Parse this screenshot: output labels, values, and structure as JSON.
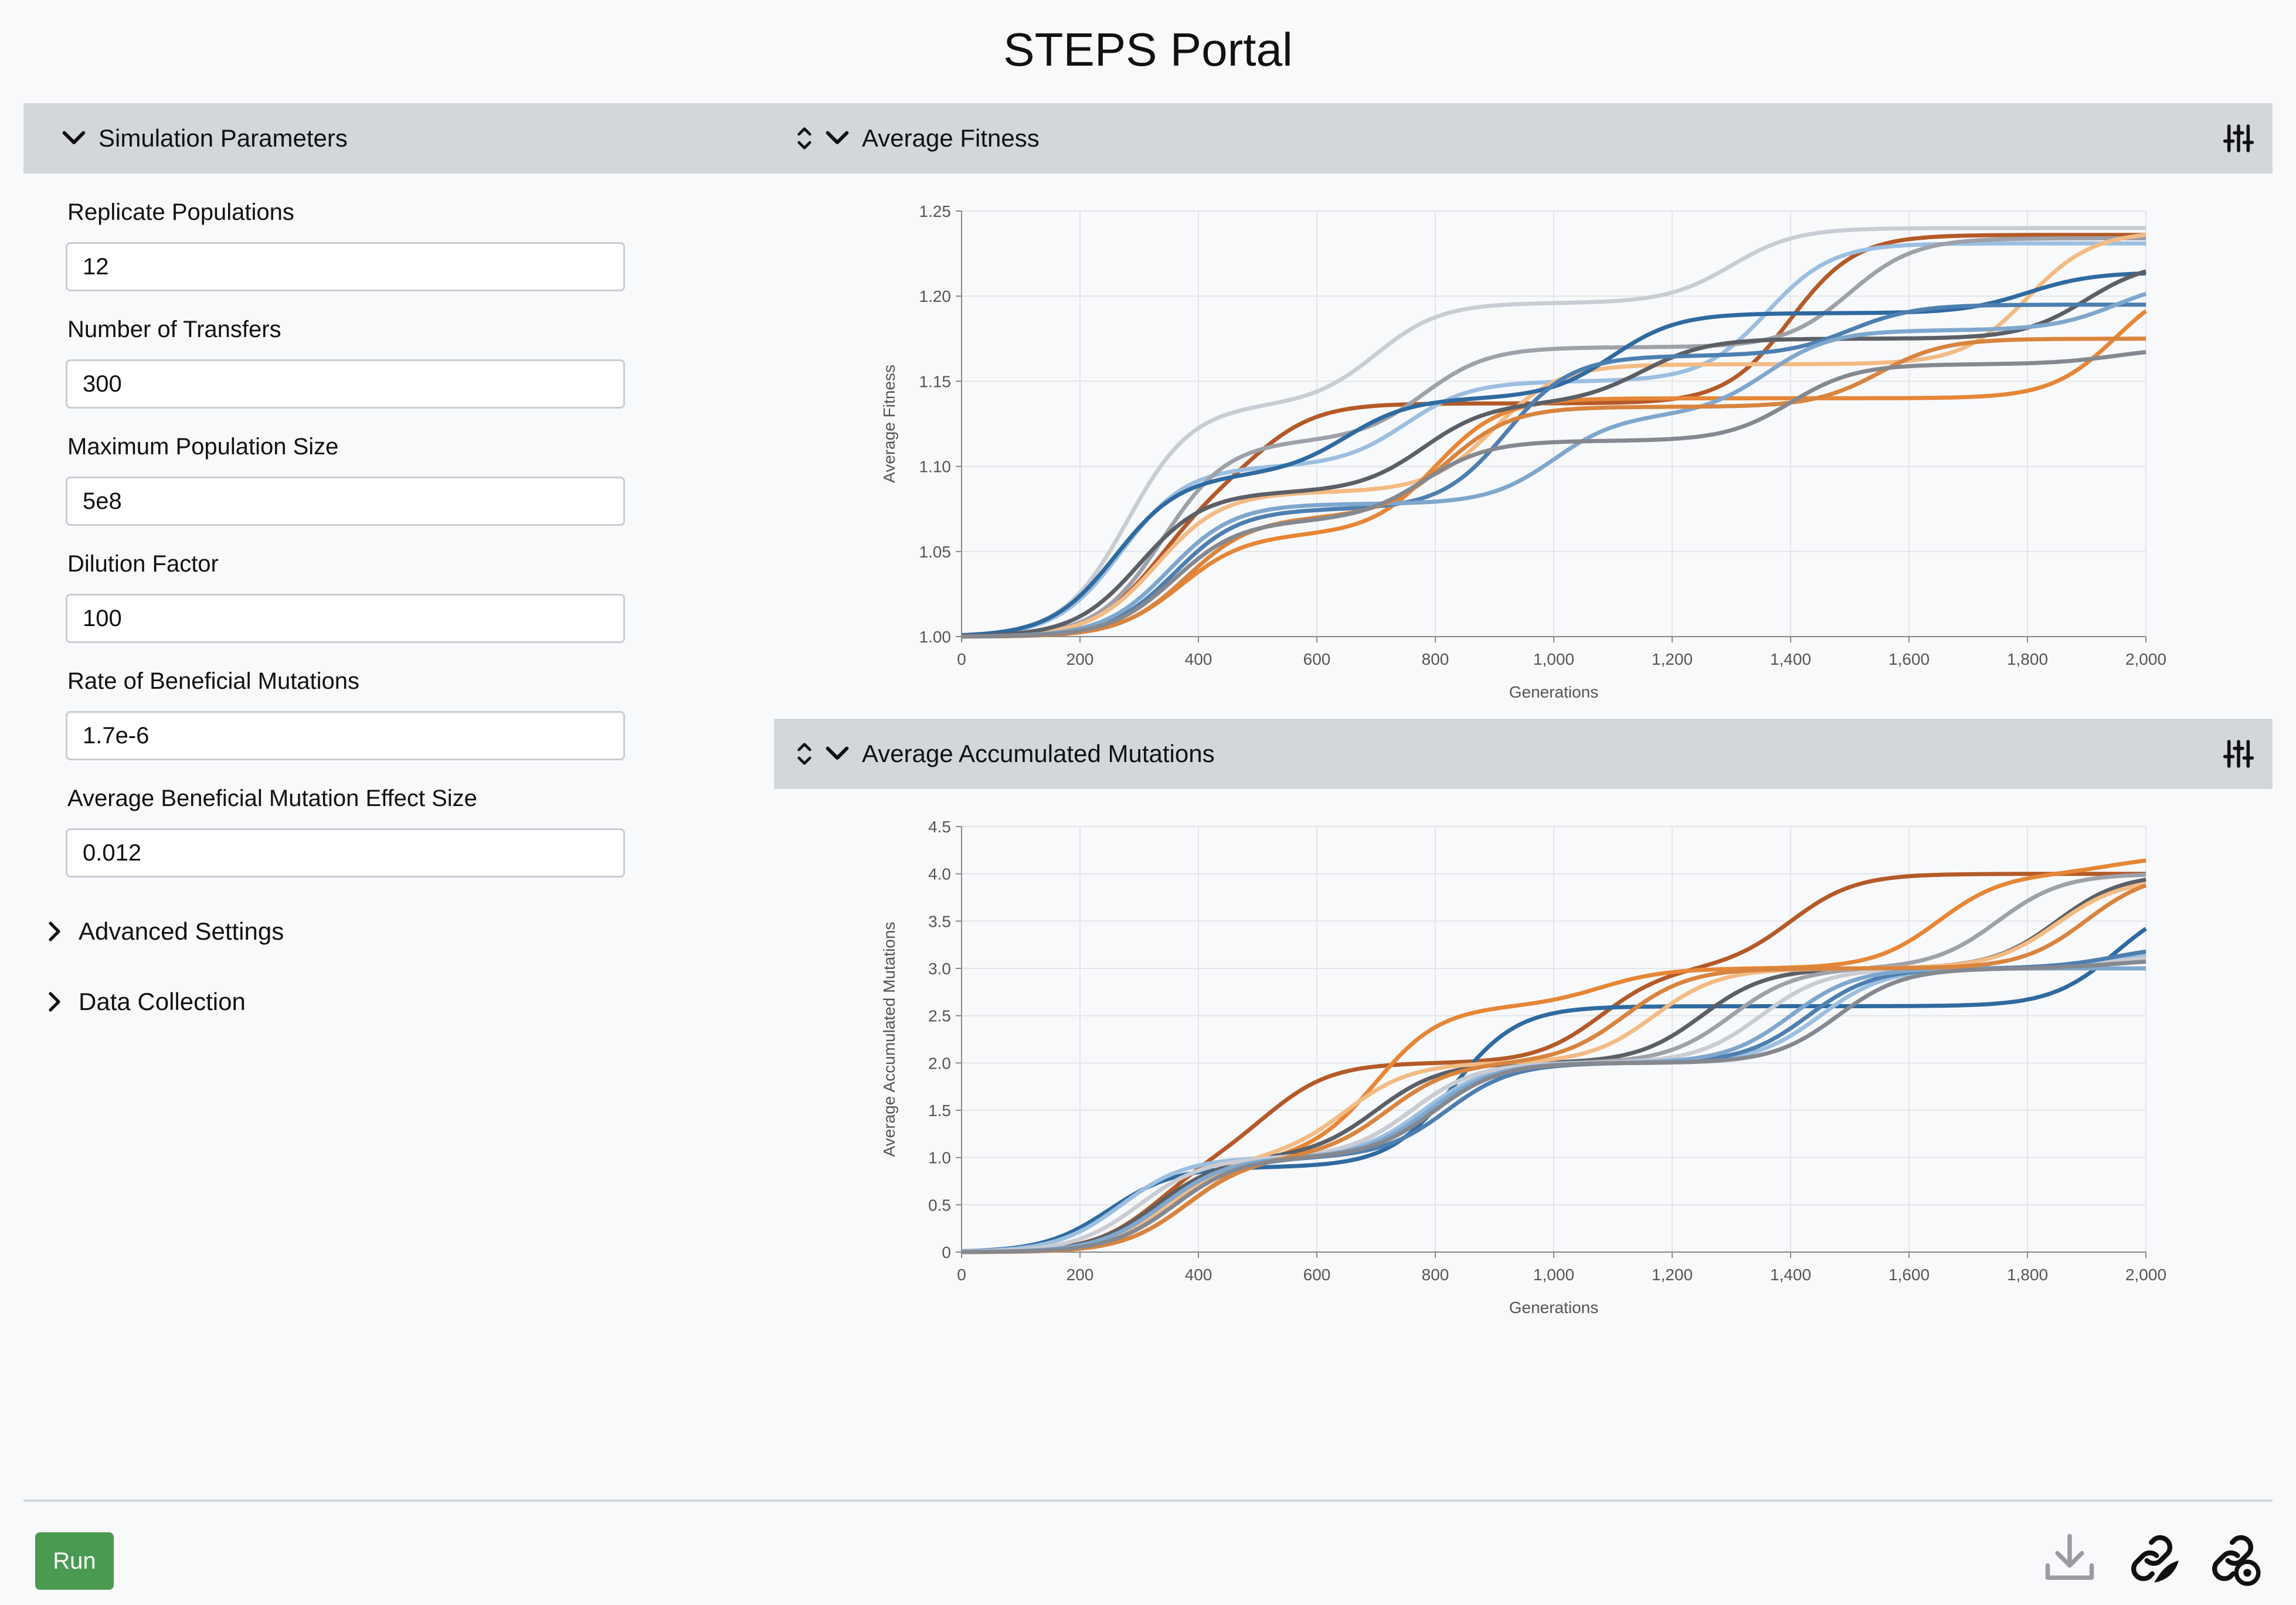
{
  "app": {
    "title": "STEPS Portal"
  },
  "sidebar": {
    "header": "Simulation Parameters",
    "fields": [
      {
        "label": "Replicate Populations",
        "value": "12"
      },
      {
        "label": "Number of Transfers",
        "value": "300"
      },
      {
        "label": "Maximum Population Size",
        "value": "5e8"
      },
      {
        "label": "Dilution Factor",
        "value": "100"
      },
      {
        "label": "Rate of Beneficial Mutations",
        "value": "1.7e-6"
      },
      {
        "label": "Average Beneficial Mutation Effect Size",
        "value": "0.012"
      }
    ],
    "sections": [
      {
        "label": "Advanced Settings",
        "expanded": false
      },
      {
        "label": "Data Collection",
        "expanded": false
      }
    ]
  },
  "panels": {
    "fitness": {
      "header": "Average Fitness"
    },
    "mutations": {
      "header": "Average Accumulated Mutations"
    }
  },
  "footer": {
    "run_label": "Run"
  },
  "icons": {
    "collapse": "chevron-down-icon",
    "expand": "chevron-right-icon",
    "reorder": "up-down-arrows-icon",
    "options": "sliders-icon",
    "download": "download-icon",
    "link_a": "link-icon",
    "link_b": "link-settings-icon"
  },
  "colors": {
    "header_bg": "#d3d6da",
    "run_button": "#4a9a52",
    "series_palette": [
      "#b45a28",
      "#e68636",
      "#f3bb84",
      "#2f6aa0",
      "#9bbfe0",
      "#5c5f66",
      "#9ea1a8",
      "#c9ccd3"
    ]
  },
  "chart_data": [
    {
      "type": "line",
      "title": "",
      "xlabel": "Generations",
      "ylabel": "Average Fitness",
      "xlim": [
        0,
        2000
      ],
      "ylim": [
        1.0,
        1.25
      ],
      "x_ticks": [
        "0",
        "200",
        "400",
        "600",
        "800",
        "1,000",
        "1,200",
        "1,400",
        "1,600",
        "1,800",
        "2,000"
      ],
      "y_ticks": [
        "1.00",
        "1.05",
        "1.10",
        "1.15",
        "1.20",
        "1.25"
      ],
      "grid": true,
      "legend": "none",
      "series": [
        {
          "color": "#c9ccd3",
          "steps": [
            [
              280,
              0.136
            ],
            [
              700,
              0.196
            ],
            [
              1300,
              0.24
            ]
          ]
        },
        {
          "color": "#b45a28",
          "steps": [
            [
              330,
              0.085
            ],
            [
              500,
              0.137
            ],
            [
              1400,
              0.236
            ]
          ]
        },
        {
          "color": "#9bbfe0",
          "steps": [
            [
              270,
              0.1
            ],
            [
              750,
              0.15
            ],
            [
              1360,
              0.231
            ]
          ]
        },
        {
          "color": "#9ea1a8",
          "steps": [
            [
              340,
              0.115
            ],
            [
              780,
              0.17
            ],
            [
              1500,
              0.234
            ]
          ]
        },
        {
          "color": "#f3bb84",
          "steps": [
            [
              330,
              0.085
            ],
            [
              900,
              0.16
            ],
            [
              1800,
              0.238
            ]
          ]
        },
        {
          "color": "#2f6aa0",
          "steps": [
            [
              260,
              0.095
            ],
            [
              650,
              0.14
            ],
            [
              1100,
              0.19
            ],
            [
              1800,
              0.214
            ]
          ]
        },
        {
          "color": "#e68636",
          "steps": [
            [
              370,
              0.06
            ],
            [
              800,
              0.14
            ],
            [
              1950,
              0.212
            ]
          ]
        },
        {
          "color": "#5c5f66",
          "steps": [
            [
              300,
              0.085
            ],
            [
              780,
              0.137
            ],
            [
              1150,
              0.175
            ],
            [
              1900,
              0.221
            ]
          ]
        },
        {
          "color": "#4d7fb0",
          "steps": [
            [
              360,
              0.075
            ],
            [
              920,
              0.165
            ],
            [
              1500,
              0.195
            ]
          ]
        },
        {
          "color": "#7fa7cd",
          "steps": [
            [
              350,
              0.078
            ],
            [
              1000,
              0.13
            ],
            [
              1360,
              0.18
            ],
            [
              1950,
              0.21
            ]
          ]
        },
        {
          "color": "#d9843e",
          "steps": [
            [
              380,
              0.07
            ],
            [
              820,
              0.135
            ],
            [
              1550,
              0.175
            ]
          ]
        },
        {
          "color": "#85888f",
          "steps": [
            [
              360,
              0.068
            ],
            [
              780,
              0.115
            ],
            [
              1400,
              0.16
            ],
            [
              1950,
              0.17
            ]
          ]
        }
      ]
    },
    {
      "type": "line",
      "title": "",
      "xlabel": "Generations",
      "ylabel": "Average Accumulated Mutations",
      "xlim": [
        0,
        2000
      ],
      "ylim": [
        0,
        4.5
      ],
      "x_ticks": [
        "0",
        "200",
        "400",
        "600",
        "800",
        "1,000",
        "1,200",
        "1,400",
        "1,600",
        "1,800",
        "2,000"
      ],
      "y_ticks": [
        "0",
        "0.5",
        "1.0",
        "1.5",
        "2.0",
        "2.5",
        "3.0",
        "3.5",
        "4.0",
        "4.5"
      ],
      "grid": true,
      "legend": "none",
      "series": [
        {
          "color": "#b45a28",
          "steps": [
            [
              330,
              1.0
            ],
            [
              520,
              2.0
            ],
            [
              1080,
              3.0
            ],
            [
              1400,
              4.0
            ]
          ]
        },
        {
          "color": "#e68636",
          "steps": [
            [
              380,
              1.0
            ],
            [
              700,
              2.6
            ],
            [
              1080,
              3.0
            ],
            [
              1650,
              4.0
            ],
            [
              1950,
              4.2
            ]
          ]
        },
        {
          "color": "#2f6aa0",
          "steps": [
            [
              250,
              0.9
            ],
            [
              830,
              2.6
            ],
            [
              1950,
              3.75
            ]
          ]
        },
        {
          "color": "#9bbfe0",
          "steps": [
            [
              270,
              1.0
            ],
            [
              780,
              2.0
            ],
            [
              1450,
              3.0
            ],
            [
              1950,
              3.2
            ]
          ]
        },
        {
          "color": "#5c5f66",
          "steps": [
            [
              330,
              1.0
            ],
            [
              700,
              2.0
            ],
            [
              1250,
              3.0
            ],
            [
              1850,
              4.0
            ]
          ]
        },
        {
          "color": "#9ea1a8",
          "steps": [
            [
              340,
              1.0
            ],
            [
              760,
              2.0
            ],
            [
              1300,
              3.0
            ],
            [
              1750,
              4.0
            ]
          ]
        },
        {
          "color": "#f3bb84",
          "steps": [
            [
              350,
              1.0
            ],
            [
              650,
              2.0
            ],
            [
              1170,
              3.0
            ],
            [
              1850,
              3.95
            ]
          ]
        },
        {
          "color": "#c9ccd3",
          "steps": [
            [
              300,
              1.0
            ],
            [
              760,
              2.0
            ],
            [
              1350,
              3.0
            ],
            [
              1950,
              3.15
            ]
          ]
        },
        {
          "color": "#4d7fb0",
          "steps": [
            [
              360,
              1.0
            ],
            [
              820,
              2.0
            ],
            [
              1430,
              3.0
            ],
            [
              1950,
              3.25
            ]
          ]
        },
        {
          "color": "#7fa7cd",
          "steps": [
            [
              340,
              1.0
            ],
            [
              790,
              2.0
            ],
            [
              1400,
              3.0
            ]
          ]
        },
        {
          "color": "#d9843e",
          "steps": [
            [
              380,
              1.0
            ],
            [
              720,
              2.0
            ],
            [
              1120,
              3.0
            ],
            [
              1900,
              4.02
            ]
          ]
        },
        {
          "color": "#85888f",
          "steps": [
            [
              360,
              1.0
            ],
            [
              800,
              2.0
            ],
            [
              1480,
              3.0
            ],
            [
              1950,
              3.1
            ]
          ]
        }
      ]
    }
  ]
}
